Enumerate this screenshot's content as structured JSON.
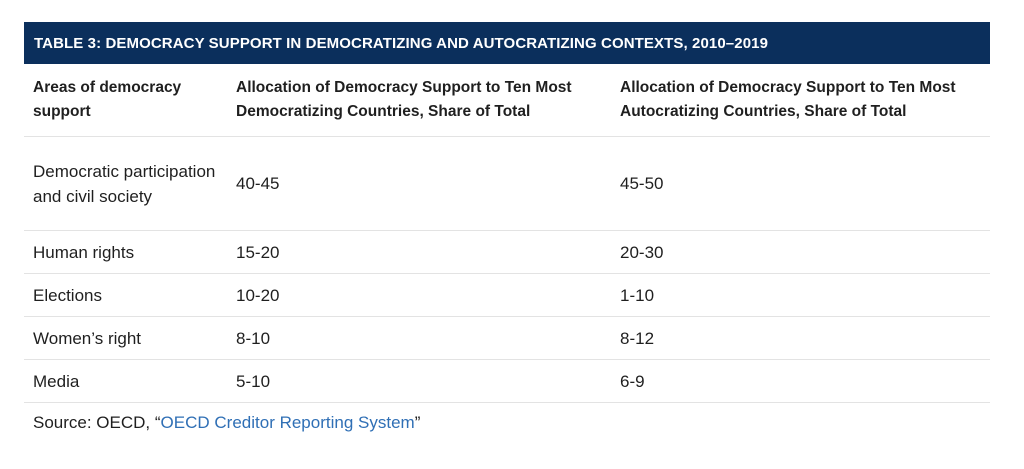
{
  "table": {
    "title": "TABLE 3: DEMOCRACY SUPPORT IN DEMOCRATIZING AND AUTOCRATIZING CONTEXTS, 2010–2019",
    "headers": [
      "Areas of democracy support",
      "Allocation of Democracy Support to Ten Most Democratizing Countries, Share of Total",
      "Allocation of Democracy Support to Ten Most Autocratizing Countries, Share of Total"
    ],
    "rows": [
      [
        "Democratic participation and civil society",
        "40-45",
        "45-50"
      ],
      [
        "Human rights",
        "15-20",
        "20-30"
      ],
      [
        "Elections",
        "10-20",
        "1-10"
      ],
      [
        "Women’s right",
        "8-10",
        "8-12"
      ],
      [
        "Media",
        "5-10",
        "6-9"
      ]
    ]
  },
  "source": {
    "prefix": "Source: OECD, “",
    "link_text": "OECD Creditor Reporting System",
    "suffix": "”",
    "link_color": "#2f6fb5"
  },
  "colors": {
    "title_bar": "#0b2f5c",
    "row_divider": "#e3e3e3"
  }
}
